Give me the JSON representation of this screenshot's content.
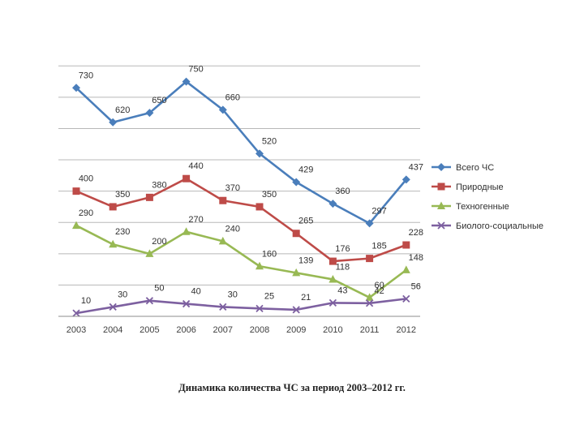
{
  "chart_data": {
    "type": "line",
    "title": "",
    "xlabel": "",
    "ylabel": "",
    "categories": [
      "2003",
      "2004",
      "2005",
      "2006",
      "2007",
      "2008",
      "2009",
      "2010",
      "2011",
      "2012"
    ],
    "ylim": [
      0,
      850
    ],
    "grid": true,
    "legend_position": "right",
    "series": [
      {
        "name": "Всего ЧС",
        "color": "#4a7ebb",
        "marker": "diamond",
        "values": [
          730,
          620,
          650,
          750,
          660,
          520,
          429,
          360,
          297,
          437
        ]
      },
      {
        "name": "Природные",
        "color": "#be4b48",
        "marker": "square",
        "values": [
          400,
          350,
          380,
          440,
          370,
          350,
          265,
          176,
          185,
          228
        ]
      },
      {
        "name": "Техногенные",
        "color": "#98b954",
        "marker": "triangle",
        "values": [
          290,
          230,
          200,
          270,
          240,
          160,
          139,
          118,
          60,
          148
        ]
      },
      {
        "name": "Биолого-социальные",
        "color": "#7d60a0",
        "marker": "x",
        "values": [
          10,
          30,
          50,
          40,
          30,
          25,
          21,
          43,
          42,
          56
        ]
      }
    ]
  },
  "caption": "Динамика количества ЧС за период 2003–2012 гг."
}
